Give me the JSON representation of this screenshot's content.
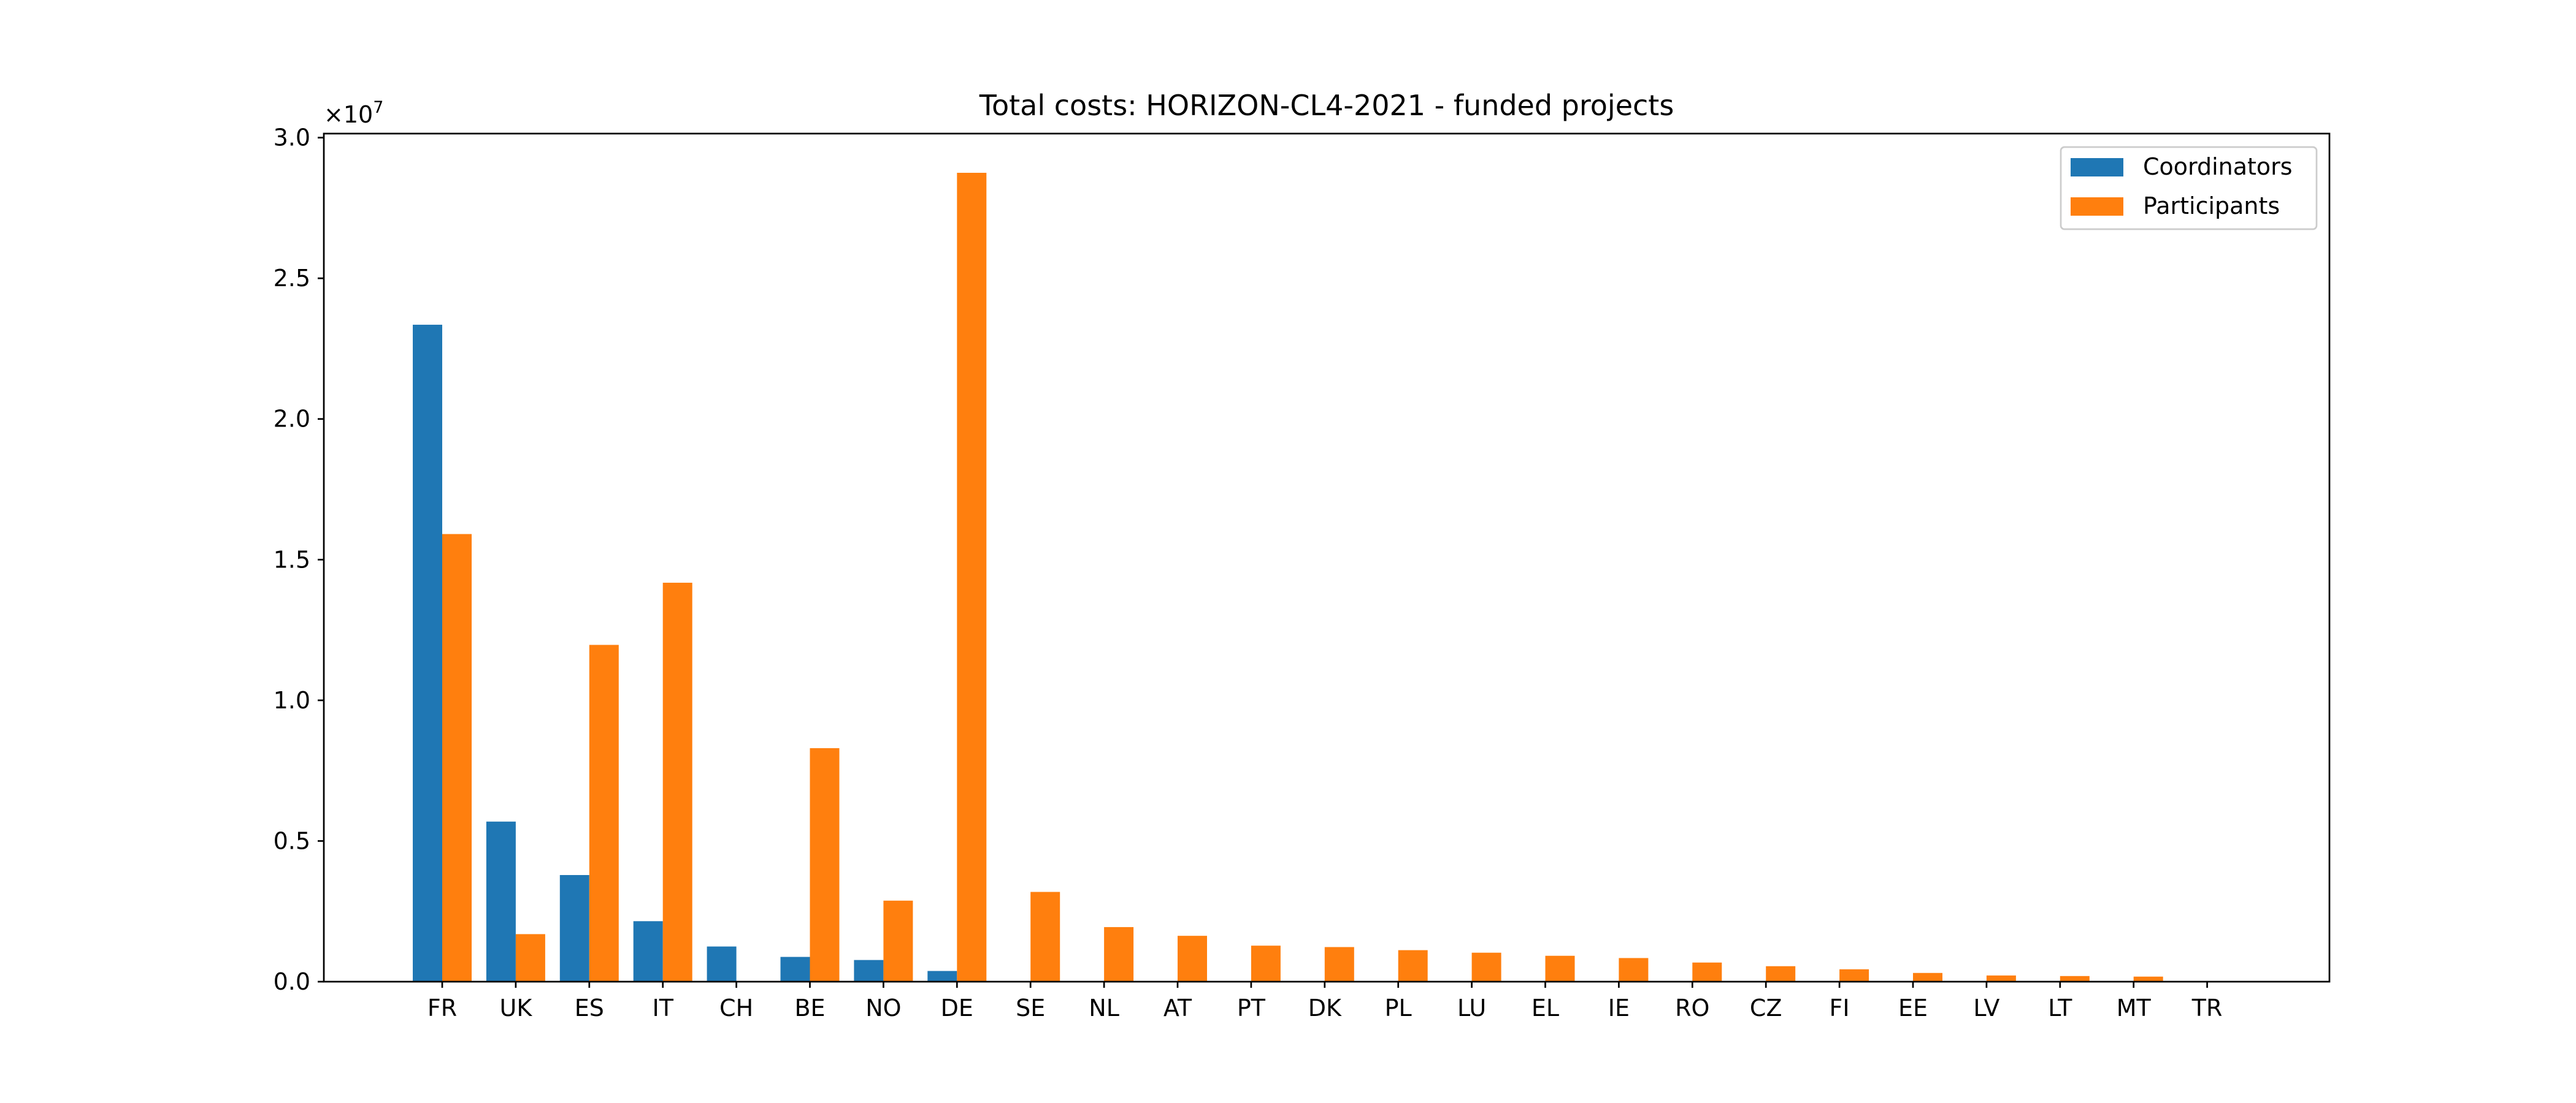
{
  "chart_data": {
    "type": "bar",
    "title": "Total costs: HORIZON-CL4-2021 - funded projects",
    "xlabel": "",
    "ylabel": "",
    "y_scale_label": "×10",
    "y_scale_exponent": "7",
    "ylim": [
      0,
      30000000
    ],
    "yticks": [
      0,
      5000000,
      10000000,
      15000000,
      20000000,
      25000000,
      30000000
    ],
    "ytick_labels": [
      "0.0",
      "0.5",
      "1.0",
      "1.5",
      "2.0",
      "2.5",
      "3.0"
    ],
    "grid": false,
    "legend_placement": "top-right",
    "categories": [
      "FR",
      "UK",
      "ES",
      "IT",
      "CH",
      "BE",
      "NO",
      "DE",
      "SE",
      "NL",
      "AT",
      "PT",
      "DK",
      "PL",
      "LU",
      "EL",
      "IE",
      "RO",
      "CZ",
      "FI",
      "EE",
      "LV",
      "LT",
      "MT",
      "TR"
    ],
    "series": [
      {
        "name": "Coordinators",
        "color": "#1f77b4",
        "values": [
          23350000,
          5690000,
          3790000,
          2150000,
          1250000,
          880000,
          770000,
          380000,
          0,
          0,
          0,
          0,
          0,
          0,
          0,
          0,
          0,
          0,
          0,
          0,
          0,
          0,
          0,
          0,
          0
        ]
      },
      {
        "name": "Participants",
        "color": "#ff7f0e",
        "values": [
          15910000,
          1690000,
          11970000,
          14180000,
          0,
          8300000,
          2880000,
          28750000,
          3190000,
          1940000,
          1630000,
          1280000,
          1230000,
          1120000,
          1030000,
          920000,
          840000,
          680000,
          550000,
          440000,
          310000,
          220000,
          200000,
          180000,
          20000
        ]
      }
    ]
  }
}
